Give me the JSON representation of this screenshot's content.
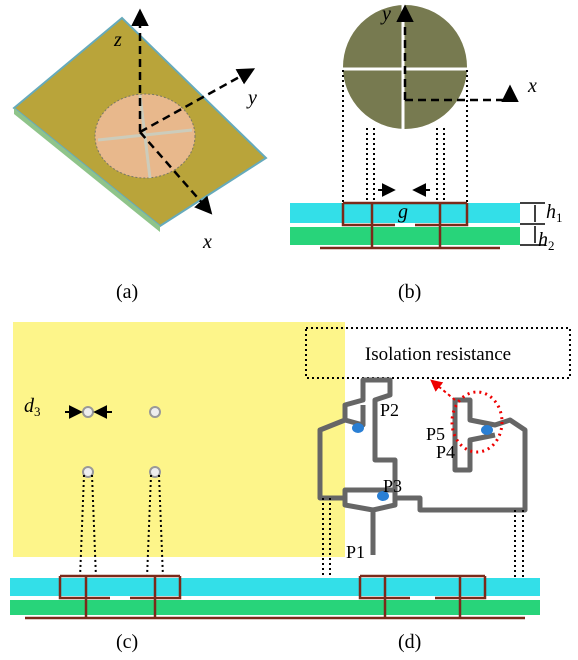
{
  "panels": [
    {
      "caption": "(a)",
      "labels": {
        "z": "z",
        "y": "y",
        "x": "x"
      }
    },
    {
      "caption": "(b)",
      "labels": {
        "y": "y",
        "x": "x",
        "g": "g",
        "h1": {
          "main": "h",
          "sub": "1"
        },
        "h2": {
          "main": "h",
          "sub": "2"
        }
      }
    },
    {
      "caption": "(c)",
      "labels": {
        "d3": {
          "main": "d",
          "sub": "3"
        }
      }
    },
    {
      "caption": "(d)",
      "labels": {
        "isolation": "Isolation resistance",
        "p1": "P1",
        "p2": "P2",
        "p3": "P3",
        "p4": "P4",
        "p5": "P5"
      }
    }
  ]
}
